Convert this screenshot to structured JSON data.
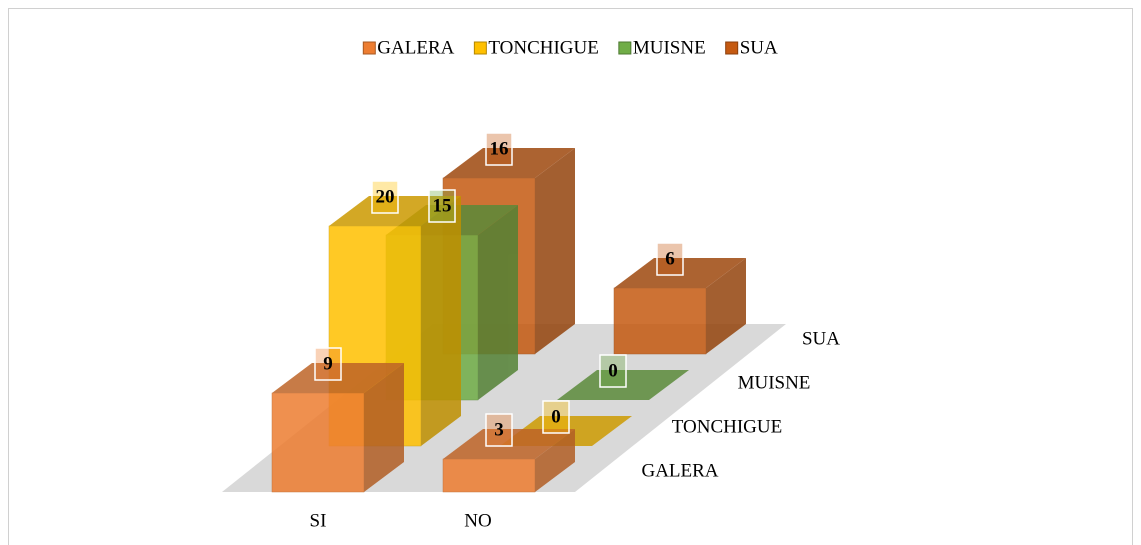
{
  "chart_data": {
    "type": "bar3d",
    "categories": [
      "SI",
      "NO"
    ],
    "series": [
      {
        "name": "GALERA",
        "color": "#ed7d31",
        "values": [
          9,
          3
        ]
      },
      {
        "name": "TONCHIGUE",
        "color": "#ffc000",
        "values": [
          20,
          0
        ]
      },
      {
        "name": "MUISNE",
        "color": "#70ad47",
        "values": [
          15,
          0
        ]
      },
      {
        "name": "SUA",
        "color": "#c55a11",
        "values": [
          16,
          6
        ]
      }
    ],
    "legend": "top"
  }
}
